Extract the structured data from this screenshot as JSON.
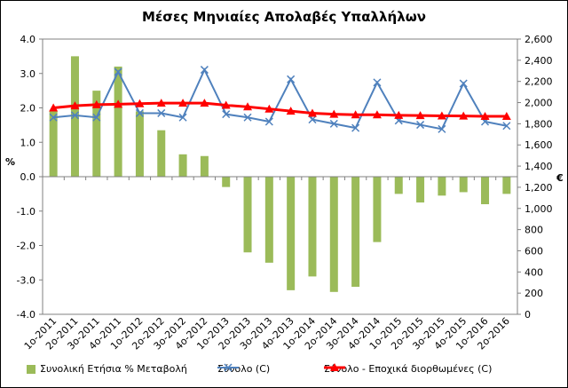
{
  "chart_data": {
    "type": "bar+line",
    "title": "Μέσες Μηνιαίες Απολαβές Υπαλλήλων",
    "categories": [
      "1ο-2011",
      "2ο-2011",
      "3ο-2011",
      "4ο-2011",
      "1ο-2012",
      "2ο-2012",
      "3ο-2012",
      "4ο-2012",
      "1ο-2013",
      "2ο-2013",
      "3ο-2013",
      "4ο-2013",
      "1ο-2014",
      "2ο-2014",
      "3ο-2014",
      "4ο-2014",
      "1ο-2015",
      "2ο-2015",
      "3ο-2015",
      "4ο-2015",
      "1ο-2016",
      "2ο-2016"
    ],
    "ylabel_left": "%",
    "ylabel_right": "€",
    "ylim_left": [
      -4.0,
      4.0
    ],
    "ylim_right": [
      0,
      2600
    ],
    "yticks_left": [
      "4.0",
      "3.0",
      "2.0",
      "1.0",
      "0.0",
      "-1.0",
      "-2.0",
      "-3.0",
      "-4.0"
    ],
    "yticks_right": [
      "2,600",
      "2,400",
      "2,200",
      "2,000",
      "1,800",
      "1,600",
      "1,400",
      "1,200",
      "1,000",
      "800",
      "600",
      "400",
      "200",
      "0"
    ],
    "series": [
      {
        "name": "Συνολική Ετήσια % Μεταβολή",
        "axis": "left",
        "kind": "bar",
        "color": "#9bbb59",
        "values": [
          1.9,
          3.5,
          2.5,
          3.2,
          1.9,
          1.35,
          0.65,
          0.6,
          -0.3,
          -2.2,
          -2.5,
          -3.3,
          -2.9,
          -3.35,
          -3.2,
          -1.9,
          -0.5,
          -0.75,
          -0.55,
          -0.45,
          -0.8,
          -0.5
        ]
      },
      {
        "name": "Σύνολο (C)",
        "axis": "right",
        "kind": "line",
        "color": "#4f81bd",
        "values": [
          1860,
          1880,
          1860,
          2290,
          1900,
          1900,
          1860,
          2310,
          1890,
          1860,
          1820,
          2220,
          1840,
          1800,
          1760,
          2190,
          1830,
          1790,
          1750,
          2180,
          1820,
          1780
        ]
      },
      {
        "name": "Σύνολο - Εποχικά διορθωμένες (C)",
        "axis": "right",
        "kind": "line",
        "color": "#ff0000",
        "values": [
          1950,
          1970,
          1980,
          1985,
          1990,
          1995,
          1995,
          1995,
          1975,
          1960,
          1940,
          1920,
          1900,
          1890,
          1885,
          1885,
          1880,
          1878,
          1875,
          1873,
          1870,
          1870
        ]
      }
    ],
    "legend_position": "bottom",
    "grid": false
  }
}
